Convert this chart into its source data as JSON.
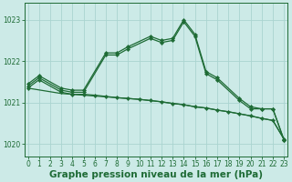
{
  "bg_color": "#cceae7",
  "grid_color": "#aad4d0",
  "line_color": "#1e6b35",
  "xlabel": "Graphe pression niveau de la mer (hPa)",
  "xlabel_fontsize": 7.5,
  "ylim": [
    1019.7,
    1023.4
  ],
  "xlim": [
    -0.3,
    23.3
  ],
  "yticks": [
    1020,
    1021,
    1022,
    1023
  ],
  "xticks": [
    0,
    1,
    2,
    3,
    4,
    5,
    6,
    7,
    8,
    9,
    10,
    11,
    12,
    13,
    14,
    15,
    16,
    17,
    18,
    19,
    20,
    21,
    22,
    23
  ],
  "tick_fontsize": 5.5,
  "lines": [
    {
      "x": [
        0,
        1,
        3,
        4,
        5,
        7,
        8,
        9,
        11,
        12,
        13,
        14,
        15,
        16,
        17,
        19,
        20,
        21,
        22,
        23
      ],
      "y": [
        1021.45,
        1021.65,
        1021.35,
        1021.3,
        1021.3,
        1022.2,
        1022.2,
        1022.35,
        1022.6,
        1022.5,
        1022.55,
        1023.0,
        1022.65,
        1021.75,
        1021.6,
        1021.1,
        1020.9,
        1020.85,
        1020.85,
        1020.1
      ],
      "marker": "D",
      "markersize": 2.2,
      "linewidth": 0.9
    },
    {
      "x": [
        0,
        1,
        3,
        4,
        5,
        7,
        8,
        9,
        11,
        12,
        13,
        14,
        15,
        16,
        17,
        19,
        20,
        21,
        22,
        23
      ],
      "y": [
        1021.4,
        1021.6,
        1021.3,
        1021.25,
        1021.25,
        1022.15,
        1022.15,
        1022.3,
        1022.55,
        1022.45,
        1022.5,
        1022.95,
        1022.6,
        1021.7,
        1021.55,
        1021.05,
        1020.85,
        1020.85,
        1020.85,
        1020.1
      ],
      "marker": "D",
      "markersize": 2.2,
      "linewidth": 0.9
    },
    {
      "x": [
        0,
        1,
        3,
        4,
        5,
        6,
        7,
        8,
        9,
        10,
        11,
        12,
        13,
        14,
        15,
        16,
        17,
        18,
        19,
        20,
        21,
        22,
        23
      ],
      "y": [
        1021.35,
        1021.55,
        1021.25,
        1021.2,
        1021.2,
        1021.18,
        1021.15,
        1021.12,
        1021.1,
        1021.08,
        1021.05,
        1021.02,
        1020.98,
        1020.95,
        1020.9,
        1020.87,
        1020.82,
        1020.78,
        1020.73,
        1020.68,
        1020.62,
        1020.57,
        1020.12
      ],
      "marker": "D",
      "markersize": 2.2,
      "linewidth": 0.9
    },
    {
      "x": [
        0,
        3,
        4,
        5,
        6,
        7,
        8,
        9,
        10,
        11,
        12,
        13,
        14,
        15,
        16,
        17,
        18,
        19,
        20,
        21,
        22,
        23
      ],
      "y": [
        1021.35,
        1021.22,
        1021.2,
        1021.18,
        1021.16,
        1021.14,
        1021.12,
        1021.1,
        1021.08,
        1021.05,
        1021.02,
        1020.98,
        1020.95,
        1020.9,
        1020.87,
        1020.82,
        1020.78,
        1020.73,
        1020.68,
        1020.62,
        1020.57,
        1020.12
      ],
      "marker": null,
      "markersize": 0,
      "linewidth": 0.9
    }
  ]
}
